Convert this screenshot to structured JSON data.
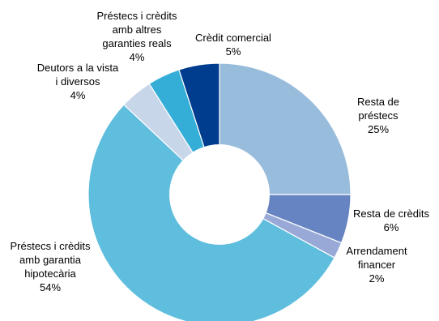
{
  "chart_data": {
    "type": "pie",
    "donut": true,
    "title": "",
    "unit": "%",
    "start_angle_deg": 0,
    "direction": "clockwise",
    "slices": [
      {
        "label": [
          "Resta de",
          "préstecs"
        ],
        "value": 25,
        "value_label": "25%",
        "color": "#98BCDC"
      },
      {
        "label": [
          "Resta de crèdits"
        ],
        "value": 6,
        "value_label": "6%",
        "color": "#6684C1"
      },
      {
        "label": [
          "Arrendament",
          "financer"
        ],
        "value": 2,
        "value_label": "2%",
        "color": "#98A9D8"
      },
      {
        "label": [
          "Préstecs i crèdits",
          "amb garantia",
          "hipotecària"
        ],
        "value": 54,
        "value_label": "54%",
        "color": "#5FBEDD"
      },
      {
        "label": [
          "Deutors a la vista",
          "i diversos"
        ],
        "value": 4,
        "value_label": "4%",
        "color": "#C8D6EA"
      },
      {
        "label": [
          "Préstecs i crèdits",
          "amb altres",
          "garanties reals"
        ],
        "value": 4,
        "value_label": "4%",
        "color": "#35AED7"
      },
      {
        "label": [
          "Crèdit comercial"
        ],
        "value": 5,
        "value_label": "5%",
        "color": "#003D8F"
      }
    ]
  }
}
